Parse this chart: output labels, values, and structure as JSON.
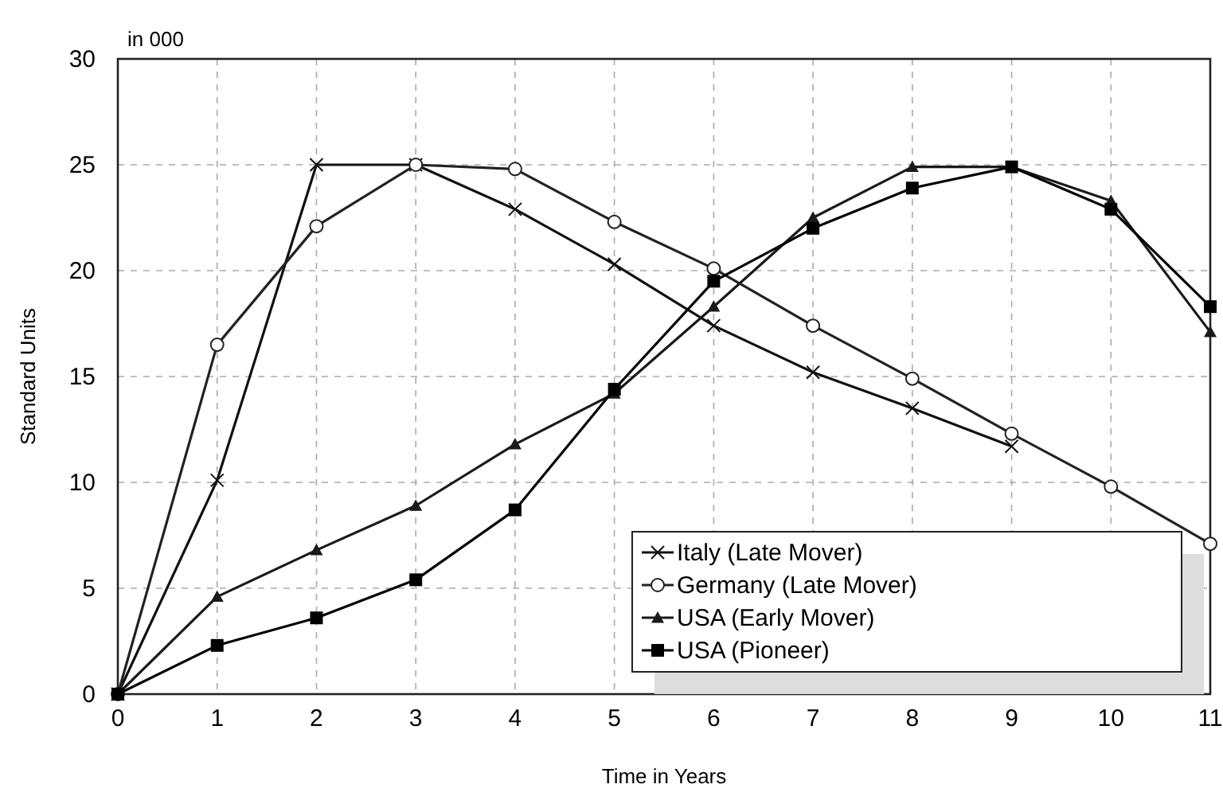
{
  "chart_data": {
    "type": "line",
    "xlabel": "Time in Years",
    "ylabel": "Standard Units",
    "annotations": [
      "in 000"
    ],
    "x": [
      0,
      1,
      2,
      3,
      4,
      5,
      6,
      7,
      8,
      9,
      10,
      11
    ],
    "xlim": [
      0,
      11
    ],
    "xticks": [
      0,
      1,
      2,
      3,
      4,
      5,
      6,
      7,
      8,
      9,
      10,
      11
    ],
    "ylim": [
      0,
      30
    ],
    "yticks": [
      0,
      5,
      10,
      15,
      20,
      25,
      30
    ],
    "grid": true,
    "legend": "bottom right",
    "series": [
      {
        "name": "Italy (Late Mover)",
        "color": "#111111",
        "marker": "cross",
        "values": [
          0,
          10.1,
          25,
          25,
          22.9,
          20.3,
          17.4,
          15.2,
          13.5,
          11.7,
          null,
          null
        ]
      },
      {
        "name": "Germany (Late Mover)",
        "color": "#222222",
        "marker": "circle",
        "values": [
          0,
          16.5,
          22.1,
          25,
          24.8,
          22.3,
          20.1,
          17.4,
          14.9,
          12.3,
          9.8,
          7.1
        ]
      },
      {
        "name": "USA (Early Mover)",
        "color": "#1a1a1a",
        "marker": "triangle",
        "values": [
          0,
          4.6,
          6.8,
          8.9,
          11.8,
          14.2,
          18.3,
          22.5,
          24.9,
          24.9,
          23.3,
          17.1
        ]
      },
      {
        "name": "USA (Pioneer)",
        "color": "#000000",
        "marker": "square",
        "values": [
          0,
          2.3,
          3.6,
          5.4,
          8.7,
          14.4,
          19.5,
          22.0,
          23.9,
          24.9,
          22.9,
          18.3
        ]
      }
    ]
  }
}
